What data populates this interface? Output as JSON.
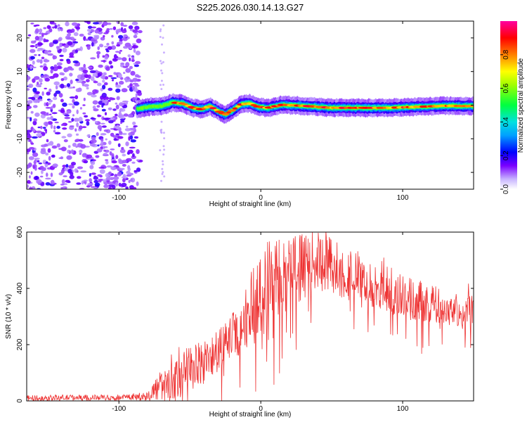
{
  "figure_title": "S225.2026.030.14.13.G27",
  "chart_data": [
    {
      "type": "heatmap",
      "title": "S225.2026.030.14.13.G27",
      "xlabel": "Height of straight line (km)",
      "ylabel": "Frequency (Hz)",
      "xlim": [
        -165,
        150
      ],
      "ylim": [
        -25,
        25
      ],
      "xticks": [
        -100,
        0,
        100
      ],
      "xtick_labels": [
        "-100",
        "0",
        "100"
      ],
      "yticks": [
        -20,
        -10,
        0,
        10,
        20
      ],
      "ytick_labels": [
        "-20",
        "-10",
        "0",
        "10",
        "20"
      ],
      "colorbar": {
        "label": "Normalized spectral amplitude",
        "range": [
          0,
          1
        ],
        "ticks": [
          0.0,
          0.2,
          0.4,
          0.6,
          0.8
        ],
        "tick_labels": [
          "0.0",
          "0.2",
          "0.4",
          "0.6",
          "0.8"
        ],
        "colormap": [
          "#ffffff",
          "#7a00ff",
          "#0000ff",
          "#00a0ff",
          "#00ff80",
          "#00ff00",
          "#ffff00",
          "#ff8000",
          "#ff0000",
          "#ff00a0"
        ]
      },
      "ridge_line": {
        "x": [
          -87,
          -80,
          -70,
          -62,
          -55,
          -48,
          -42,
          -36,
          -30,
          -25,
          -20,
          -14,
          -8,
          -2,
          5,
          15,
          30,
          50,
          70,
          90,
          110,
          130,
          150
        ],
        "y": [
          -1.2,
          -0.5,
          -0.3,
          0.8,
          0.5,
          -0.8,
          -1.2,
          -0.3,
          -1.8,
          -2.8,
          -1.5,
          0.2,
          0.5,
          -0.5,
          -0.8,
          0.1,
          -0.2,
          -0.8,
          -0.8,
          -0.8,
          -0.5,
          -0.2,
          -0.3
        ]
      },
      "noise_region": {
        "x_start": -165,
        "x_end": -85,
        "intensity": [
          0.2,
          0.45
        ]
      }
    },
    {
      "type": "line",
      "xlabel": "Height of straight line (km)",
      "ylabel": "SNR (10 * v/v)",
      "xlim": [
        -165,
        150
      ],
      "ylim": [
        0,
        600
      ],
      "xticks": [
        -100,
        0,
        100
      ],
      "xtick_labels": [
        "-100",
        "0",
        "100"
      ],
      "yticks": [
        0,
        200,
        400,
        600
      ],
      "ytick_labels": [
        "0",
        "200",
        "400",
        "600"
      ],
      "series": [
        {
          "name": "SNR",
          "color": "#ee3333",
          "envelope": {
            "x": [
              -165,
              -140,
              -120,
              -100,
              -90,
              -80,
              -72,
              -66,
              -60,
              -55,
              -50,
              -45,
              -40,
              -35,
              -30,
              -25,
              -20,
              -15,
              -10,
              -5,
              0,
              5,
              10,
              20,
              30,
              40,
              50,
              60,
              70,
              80,
              90,
              100,
              110,
              120,
              130,
              140,
              150
            ],
            "mid": [
              10,
              12,
              12,
              13,
              14,
              18,
              50,
              60,
              80,
              100,
              110,
              130,
              140,
              150,
              170,
              200,
              230,
              260,
              300,
              340,
              380,
              420,
              440,
              460,
              480,
              500,
              480,
              460,
              430,
              400,
              380,
              370,
              360,
              350,
              330,
              320,
              330
            ],
            "amp": [
              10,
              10,
              10,
              10,
              10,
              15,
              50,
              60,
              70,
              80,
              90,
              80,
              80,
              80,
              80,
              80,
              90,
              100,
              120,
              140,
              160,
              160,
              140,
              130,
              120,
              100,
              110,
              100,
              90,
              80,
              80,
              80,
              80,
              70,
              60,
              60,
              60
            ]
          }
        }
      ]
    }
  ]
}
